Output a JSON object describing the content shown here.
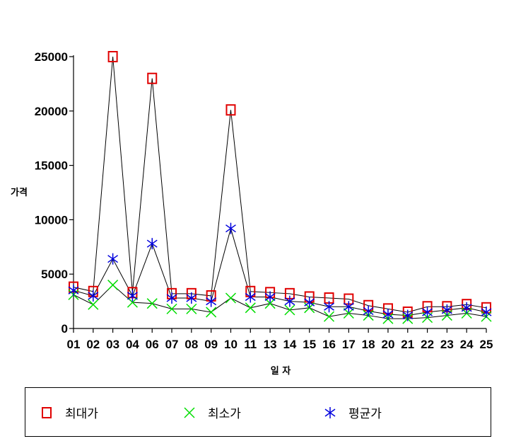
{
  "chart_data": {
    "type": "line",
    "categories": [
      "01",
      "02",
      "03",
      "04",
      "06",
      "07",
      "08",
      "09",
      "10",
      "11",
      "13",
      "14",
      "15",
      "16",
      "17",
      "18",
      "20",
      "21",
      "22",
      "23",
      "24",
      "25"
    ],
    "series": [
      {
        "name": "최대가",
        "marker": "square",
        "color": "#e00000",
        "values": [
          3800,
          3400,
          25000,
          3300,
          23000,
          3200,
          3200,
          3000,
          20100,
          3400,
          3300,
          3200,
          2900,
          2800,
          2700,
          2100,
          1800,
          1500,
          2000,
          2000,
          2200,
          1900
        ]
      },
      {
        "name": "최소가",
        "marker": "x",
        "color": "#00dd00",
        "values": [
          3100,
          2200,
          4000,
          2400,
          2300,
          1800,
          1800,
          1500,
          2800,
          1900,
          2300,
          1700,
          1900,
          1100,
          1400,
          1200,
          900,
          900,
          1000,
          1200,
          1400,
          1100
        ]
      },
      {
        "name": "평균가",
        "marker": "asterisk",
        "color": "#0000dd",
        "values": [
          3500,
          3000,
          6400,
          3000,
          7800,
          2800,
          2800,
          2500,
          9200,
          2900,
          2900,
          2500,
          2400,
          2000,
          2000,
          1600,
          1300,
          1200,
          1500,
          1700,
          1900,
          1500
        ]
      }
    ],
    "xlabel": "일 자",
    "ylabel": "가격",
    "yticks": [
      "0",
      "5000",
      "10000",
      "15000",
      "20000",
      "25000"
    ],
    "ylim": [
      0,
      25000
    ]
  },
  "legend": {
    "position": "bottom"
  }
}
